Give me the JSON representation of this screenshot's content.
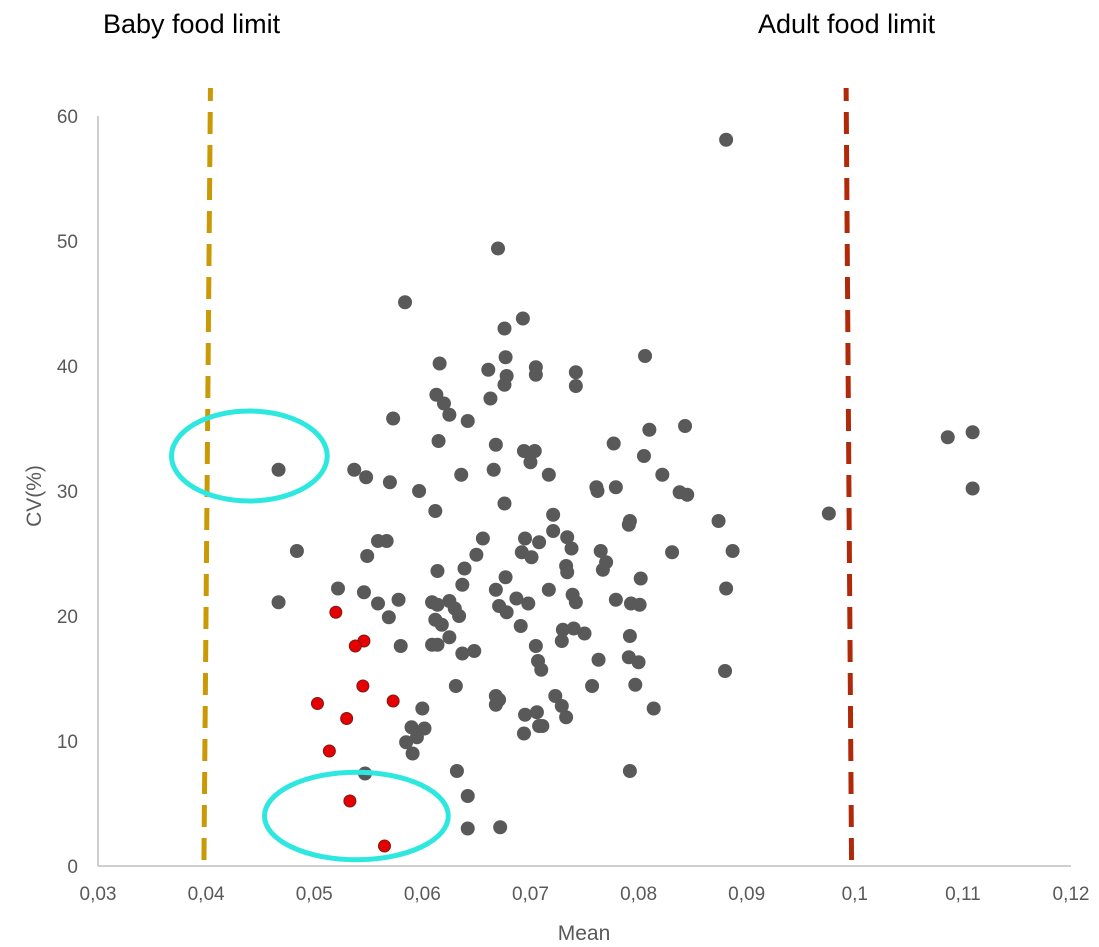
{
  "chart_data": {
    "type": "scatter",
    "title": "",
    "xlabel": "Mean",
    "ylabel": "CV(%)",
    "xlim": [
      0.03,
      0.12
    ],
    "ylim": [
      0,
      60
    ],
    "x_ticks": [
      "0,03",
      "0,04",
      "0,05",
      "0,06",
      "0,07",
      "0,08",
      "0,09",
      "0,1",
      "0,11",
      "0,12"
    ],
    "y_ticks": [
      "0",
      "10",
      "20",
      "30",
      "40",
      "50",
      "60"
    ],
    "grid": false,
    "legend": "none",
    "reference_lines": [
      {
        "label": "Baby food limit",
        "x_bottom": 0.0398,
        "x_top": 0.0404,
        "color": "#C99A06"
      },
      {
        "label": "Adult food limit",
        "x_bottom": 0.0997,
        "x_top": 0.0992,
        "color": "#B02A0A"
      }
    ],
    "highlight_ellipses": [
      {
        "cx": 0.044,
        "cy": 32.8,
        "rx": 0.0072,
        "ry": 3.6,
        "color": "#2EE8E0"
      },
      {
        "cx": 0.0539,
        "cy": 4.0,
        "rx": 0.0085,
        "ry": 3.5,
        "color": "#2EE8E0"
      }
    ],
    "series": [
      {
        "color": "#595959",
        "points": [
          [
            0.0881,
            58.1
          ],
          [
            0.067,
            49.4
          ],
          [
            0.0584,
            45.1
          ],
          [
            0.0693,
            43.8
          ],
          [
            0.0676,
            43.0
          ],
          [
            0.0806,
            40.8
          ],
          [
            0.0677,
            40.7
          ],
          [
            0.0616,
            40.2
          ],
          [
            0.0705,
            39.9
          ],
          [
            0.0661,
            39.7
          ],
          [
            0.0742,
            39.5
          ],
          [
            0.0678,
            39.2
          ],
          [
            0.0705,
            39.3
          ],
          [
            0.0676,
            38.5
          ],
          [
            0.0742,
            38.4
          ],
          [
            0.0613,
            37.7
          ],
          [
            0.062,
            37.0
          ],
          [
            0.0663,
            37.4
          ],
          [
            0.0625,
            36.1
          ],
          [
            0.0573,
            35.8
          ],
          [
            0.0642,
            35.6
          ],
          [
            0.0843,
            35.2
          ],
          [
            0.081,
            34.9
          ],
          [
            0.0615,
            34.0
          ],
          [
            0.0668,
            33.7
          ],
          [
            0.0777,
            33.8
          ],
          [
            0.0694,
            33.2
          ],
          [
            0.0704,
            33.2
          ],
          [
            0.0805,
            32.8
          ],
          [
            0.07,
            32.3
          ],
          [
            0.0467,
            31.7
          ],
          [
            0.0666,
            31.7
          ],
          [
            0.0636,
            31.3
          ],
          [
            0.0717,
            31.3
          ],
          [
            0.0537,
            31.7
          ],
          [
            0.0548,
            31.1
          ],
          [
            0.0822,
            31.3
          ],
          [
            0.057,
            30.7
          ],
          [
            0.0761,
            30.3
          ],
          [
            0.0779,
            30.3
          ],
          [
            0.0762,
            30.0
          ],
          [
            0.0597,
            30.0
          ],
          [
            0.0838,
            29.9
          ],
          [
            0.0845,
            29.7
          ],
          [
            0.0676,
            29.0
          ],
          [
            0.0612,
            28.4
          ],
          [
            0.0721,
            28.1
          ],
          [
            0.0976,
            28.2
          ],
          [
            0.0792,
            27.6
          ],
          [
            0.0874,
            27.6
          ],
          [
            0.0791,
            27.3
          ],
          [
            0.0721,
            26.8
          ],
          [
            0.0734,
            26.3
          ],
          [
            0.0695,
            26.2
          ],
          [
            0.0656,
            26.2
          ],
          [
            0.0708,
            25.9
          ],
          [
            0.0567,
            26.0
          ],
          [
            0.0559,
            26.0
          ],
          [
            0.0738,
            25.4
          ],
          [
            0.0484,
            25.2
          ],
          [
            0.0887,
            25.2
          ],
          [
            0.0765,
            25.2
          ],
          [
            0.0831,
            25.1
          ],
          [
            0.0692,
            25.1
          ],
          [
            0.065,
            24.9
          ],
          [
            0.0549,
            24.8
          ],
          [
            0.0701,
            24.7
          ],
          [
            0.077,
            24.3
          ],
          [
            0.0733,
            24.0
          ],
          [
            0.0639,
            23.8
          ],
          [
            0.0767,
            23.7
          ],
          [
            0.0614,
            23.6
          ],
          [
            0.0734,
            23.5
          ],
          [
            0.0677,
            23.1
          ],
          [
            0.0802,
            23.0
          ],
          [
            0.0637,
            22.5
          ],
          [
            0.0717,
            22.1
          ],
          [
            0.0522,
            22.2
          ],
          [
            0.0668,
            22.1
          ],
          [
            0.0881,
            22.2
          ],
          [
            0.0546,
            21.9
          ],
          [
            0.0739,
            21.7
          ],
          [
            0.0687,
            21.4
          ],
          [
            0.0578,
            21.3
          ],
          [
            0.0779,
            21.3
          ],
          [
            0.0467,
            21.1
          ],
          [
            0.0609,
            21.1
          ],
          [
            0.0625,
            21.2
          ],
          [
            0.0742,
            21.1
          ],
          [
            0.0559,
            21.0
          ],
          [
            0.0698,
            21.0
          ],
          [
            0.0793,
            21.0
          ],
          [
            0.0614,
            20.9
          ],
          [
            0.0801,
            20.9
          ],
          [
            0.0671,
            20.8
          ],
          [
            0.063,
            20.6
          ],
          [
            0.0678,
            20.3
          ],
          [
            0.0634,
            20.0
          ],
          [
            0.0569,
            19.9
          ],
          [
            0.0612,
            19.7
          ],
          [
            0.0618,
            19.3
          ],
          [
            0.0691,
            19.2
          ],
          [
            0.073,
            18.9
          ],
          [
            0.074,
            19.0
          ],
          [
            0.0625,
            18.3
          ],
          [
            0.075,
            18.6
          ],
          [
            0.0792,
            18.4
          ],
          [
            0.0729,
            18.0
          ],
          [
            0.058,
            17.6
          ],
          [
            0.0609,
            17.7
          ],
          [
            0.0614,
            17.7
          ],
          [
            0.0705,
            17.6
          ],
          [
            0.0648,
            17.2
          ],
          [
            0.0637,
            17.0
          ],
          [
            0.0791,
            16.7
          ],
          [
            0.0763,
            16.5
          ],
          [
            0.0707,
            16.4
          ],
          [
            0.08,
            16.3
          ],
          [
            0.071,
            15.7
          ],
          [
            0.088,
            15.6
          ],
          [
            0.0631,
            14.4
          ],
          [
            0.0757,
            14.4
          ],
          [
            0.0797,
            14.5
          ],
          [
            0.0668,
            13.6
          ],
          [
            0.0723,
            13.6
          ],
          [
            0.0671,
            13.3
          ],
          [
            0.0729,
            12.8
          ],
          [
            0.0668,
            12.9
          ],
          [
            0.0814,
            12.6
          ],
          [
            0.06,
            12.6
          ],
          [
            0.0706,
            12.3
          ],
          [
            0.0695,
            12.1
          ],
          [
            0.0733,
            11.9
          ],
          [
            0.059,
            11.1
          ],
          [
            0.0602,
            11.0
          ],
          [
            0.0708,
            11.2
          ],
          [
            0.0711,
            11.2
          ],
          [
            0.0694,
            10.6
          ],
          [
            0.0595,
            10.3
          ],
          [
            0.0585,
            9.9
          ],
          [
            0.0591,
            9.0
          ],
          [
            0.0632,
            7.6
          ],
          [
            0.0792,
            7.6
          ],
          [
            0.0547,
            7.4
          ],
          [
            0.0642,
            5.6
          ],
          [
            0.0642,
            3.0
          ],
          [
            0.0672,
            3.1
          ],
          [
            0.1086,
            34.3
          ],
          [
            0.1109,
            34.7
          ],
          [
            0.1109,
            30.2
          ]
        ]
      },
      {
        "color": "#E60000",
        "points": [
          [
            0.052,
            20.3
          ],
          [
            0.0546,
            18.0
          ],
          [
            0.0538,
            17.6
          ],
          [
            0.0545,
            14.4
          ],
          [
            0.0573,
            13.2
          ],
          [
            0.0503,
            13.0
          ],
          [
            0.053,
            11.8
          ],
          [
            0.0514,
            9.2
          ],
          [
            0.0533,
            5.2
          ],
          [
            0.0565,
            1.6
          ]
        ]
      }
    ]
  }
}
